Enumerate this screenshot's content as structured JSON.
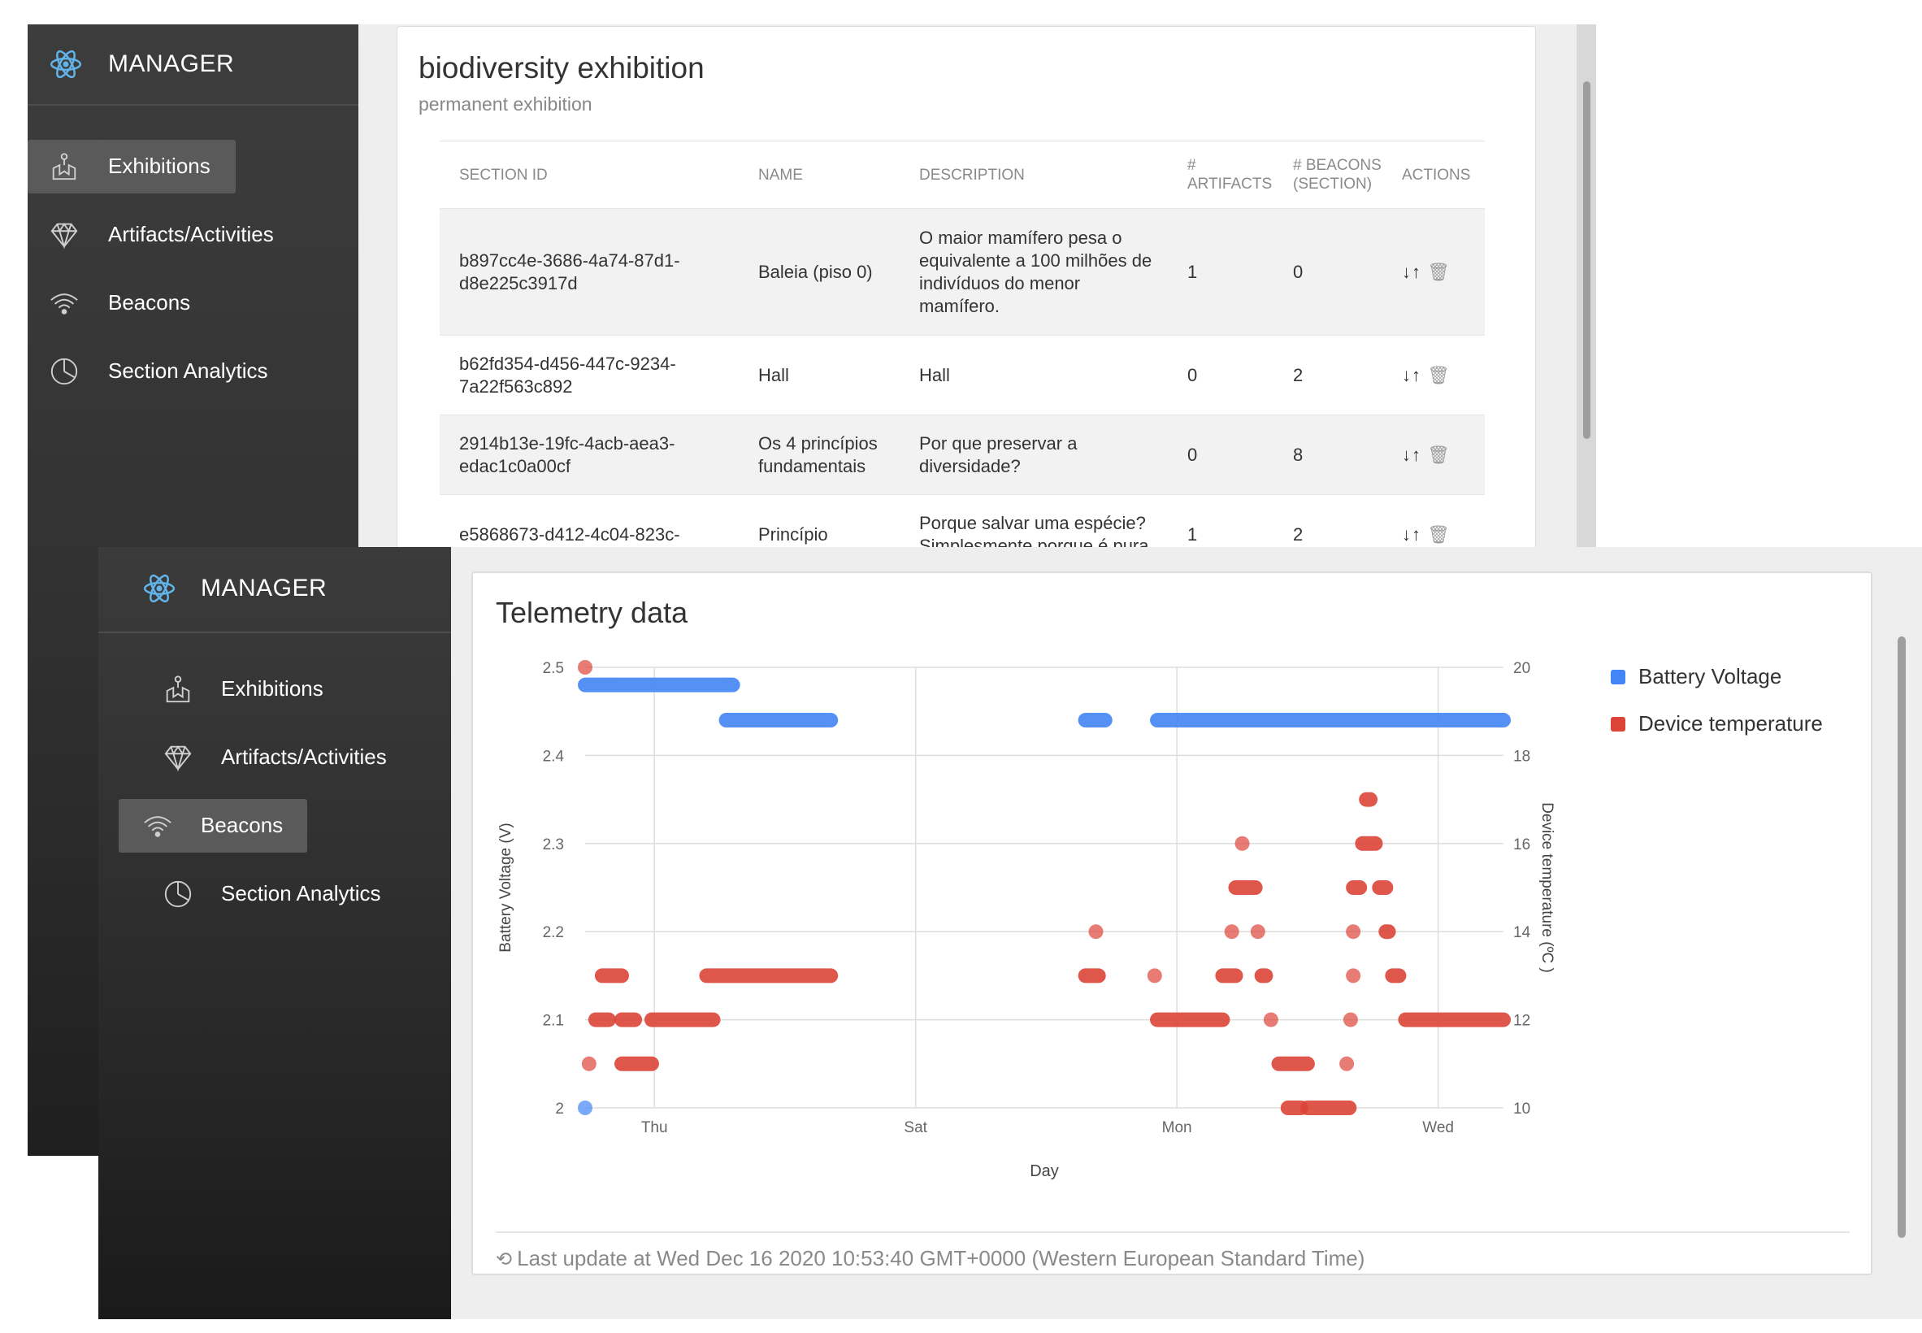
{
  "back": {
    "brand": "MANAGER",
    "nav": [
      {
        "label": "Exhibitions",
        "icon": "exhibitions-icon",
        "active": true
      },
      {
        "label": "Artifacts/Activities",
        "icon": "diamond-icon",
        "active": false
      },
      {
        "label": "Beacons",
        "icon": "wifi-icon",
        "active": false
      },
      {
        "label": "Section Analytics",
        "icon": "analytics-icon",
        "active": false
      }
    ],
    "card": {
      "title": "biodiversity exhibition",
      "subtitle": "permanent exhibition",
      "columns": [
        "SECTION ID",
        "NAME",
        "DESCRIPTION",
        "# ARTIFACTS",
        "# BEACONS (SECTION)",
        "ACTIONS"
      ],
      "rows": [
        {
          "id": "b897cc4e-3686-4a74-87d1-d8e225c3917d",
          "name": "Baleia (piso 0)",
          "description": "O maior mamífero pesa o equivalente a 100 milhões de indivíduos do menor mamífero.",
          "artifacts": "1",
          "beacons": "0"
        },
        {
          "id": "b62fd354-d456-447c-9234-7a22f563c892",
          "name": "Hall",
          "description": "Hall",
          "artifacts": "0",
          "beacons": "2"
        },
        {
          "id": "2914b13e-19fc-4acb-aea3-edac1c0a00cf",
          "name": "Os 4 princípios fundamentais",
          "description": "Por que preservar a diversidade?",
          "artifacts": "0",
          "beacons": "8"
        },
        {
          "id": "e5868673-d412-4c04-823c-",
          "name": "Princípio",
          "description": "Porque salvar uma espécie? Simplesmente porque é pura",
          "artifacts": "1",
          "beacons": "2"
        }
      ],
      "action_icons": "↓↑ 🗑"
    }
  },
  "front": {
    "brand": "MANAGER",
    "nav": [
      {
        "label": "Exhibitions",
        "icon": "exhibitions-icon",
        "active": false
      },
      {
        "label": "Artifacts/Activities",
        "icon": "diamond-icon",
        "active": false
      },
      {
        "label": "Beacons",
        "icon": "wifi-icon",
        "active": true
      },
      {
        "label": "Section Analytics",
        "icon": "analytics-icon",
        "active": false
      }
    ],
    "card": {
      "title": "Telemetry data",
      "footer_icon": "⟲",
      "footer": "Last update at Wed Dec 16 2020 10:53:40 GMT+0000 (Western European Standard Time)"
    }
  },
  "chart_data": {
    "type": "scatter",
    "title": "Telemetry data",
    "xlabel": "Day",
    "x_ticks": [
      {
        "label": "Thu",
        "day": 1
      },
      {
        "label": "Sat",
        "day": 3
      },
      {
        "label": "Mon",
        "day": 5
      },
      {
        "label": "Wed",
        "day": 7
      }
    ],
    "xlim": [
      0.47,
      7.5
    ],
    "y_left": {
      "label": "Battery Voltage (V)",
      "ticks": [
        "2",
        "2.1",
        "2.2",
        "2.3",
        "2.4",
        "2.5"
      ],
      "lim": [
        2,
        2.5
      ]
    },
    "y_right": {
      "label": "Device temperature (ºC )",
      "ticks": [
        "10",
        "12",
        "14",
        "16",
        "18",
        "20"
      ],
      "lim": [
        10,
        20
      ]
    },
    "grid": true,
    "legend_position": "right",
    "colors": {
      "battery": "#4285f4",
      "temperature": "#db4437"
    },
    "series": [
      {
        "name": "Battery Voltage",
        "axis": "left",
        "color": "#4285f4",
        "segments": [
          {
            "x_start": 0.47,
            "x_end": 0.47,
            "y": 2.0
          },
          {
            "x_start": 0.47,
            "x_end": 1.6,
            "y": 2.48
          },
          {
            "x_start": 1.55,
            "x_end": 2.35,
            "y": 2.44
          },
          {
            "x_start": 4.3,
            "x_end": 4.45,
            "y": 2.44
          },
          {
            "x_start": 4.85,
            "x_end": 7.5,
            "y": 2.44
          }
        ]
      },
      {
        "name": "Device temperature",
        "axis": "right",
        "color": "#db4437",
        "segments": [
          {
            "x_start": 0.47,
            "x_end": 0.47,
            "y": 20
          },
          {
            "x_start": 0.5,
            "x_end": 0.5,
            "y": 11
          },
          {
            "x_start": 0.55,
            "x_end": 0.65,
            "y": 12
          },
          {
            "x_start": 0.6,
            "x_end": 0.75,
            "y": 13
          },
          {
            "x_start": 0.75,
            "x_end": 0.85,
            "y": 12
          },
          {
            "x_start": 0.75,
            "x_end": 0.98,
            "y": 11
          },
          {
            "x_start": 0.98,
            "x_end": 1.45,
            "y": 12
          },
          {
            "x_start": 1.4,
            "x_end": 2.35,
            "y": 13
          },
          {
            "x_start": 4.3,
            "x_end": 4.4,
            "y": 13
          },
          {
            "x_start": 4.38,
            "x_end": 4.38,
            "y": 14
          },
          {
            "x_start": 4.83,
            "x_end": 4.83,
            "y": 13
          },
          {
            "x_start": 4.85,
            "x_end": 5.35,
            "y": 12
          },
          {
            "x_start": 5.35,
            "x_end": 5.45,
            "y": 13
          },
          {
            "x_start": 5.42,
            "x_end": 5.42,
            "y": 14
          },
          {
            "x_start": 5.45,
            "x_end": 5.6,
            "y": 15
          },
          {
            "x_start": 5.5,
            "x_end": 5.5,
            "y": 16
          },
          {
            "x_start": 5.62,
            "x_end": 5.62,
            "y": 14
          },
          {
            "x_start": 5.65,
            "x_end": 5.68,
            "y": 13
          },
          {
            "x_start": 5.72,
            "x_end": 5.72,
            "y": 12
          },
          {
            "x_start": 5.78,
            "x_end": 6.0,
            "y": 11
          },
          {
            "x_start": 5.85,
            "x_end": 5.95,
            "y": 10
          },
          {
            "x_start": 6.0,
            "x_end": 6.32,
            "y": 10
          },
          {
            "x_start": 6.3,
            "x_end": 6.3,
            "y": 11
          },
          {
            "x_start": 6.33,
            "x_end": 6.33,
            "y": 12
          },
          {
            "x_start": 6.35,
            "x_end": 6.35,
            "y": 13
          },
          {
            "x_start": 6.35,
            "x_end": 6.35,
            "y": 14
          },
          {
            "x_start": 6.35,
            "x_end": 6.4,
            "y": 15
          },
          {
            "x_start": 6.42,
            "x_end": 6.52,
            "y": 16
          },
          {
            "x_start": 6.45,
            "x_end": 6.48,
            "y": 17
          },
          {
            "x_start": 6.55,
            "x_end": 6.6,
            "y": 15
          },
          {
            "x_start": 6.6,
            "x_end": 6.62,
            "y": 14
          },
          {
            "x_start": 6.65,
            "x_end": 6.7,
            "y": 13
          },
          {
            "x_start": 6.75,
            "x_end": 7.5,
            "y": 12
          }
        ]
      }
    ]
  }
}
